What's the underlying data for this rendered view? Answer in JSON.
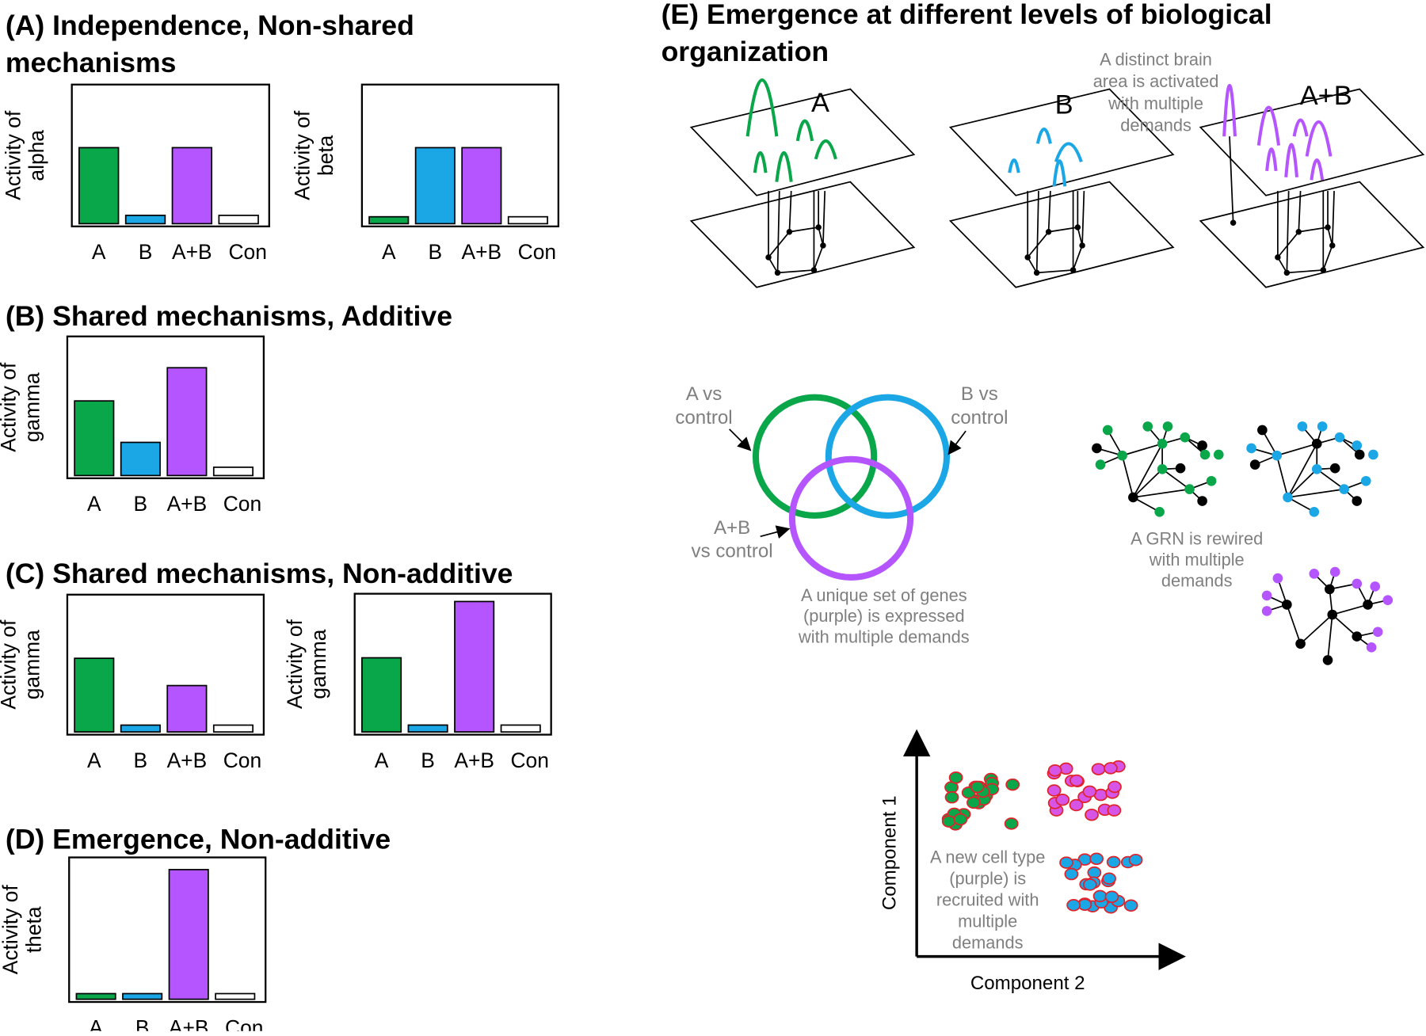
{
  "chart_data": [
    {
      "type": "bar",
      "title": [
        "(A) Independence, Non-shared",
        "mechanisms"
      ],
      "y_label": [
        "Activity of",
        "alpha"
      ],
      "categories": [
        "A",
        "B",
        "A+B",
        "Con"
      ],
      "values": [
        55,
        6,
        55,
        6
      ],
      "colors": [
        "#0aa64a",
        "#1ba7e6",
        "#b455ff",
        "#ffffff"
      ],
      "ylim": [
        0,
        100
      ]
    },
    {
      "type": "bar",
      "y_label": [
        "Activity of",
        "beta"
      ],
      "categories": [
        "A",
        "B",
        "A+B",
        "Con"
      ],
      "values": [
        5,
        55,
        55,
        5
      ],
      "colors": [
        "#0aa64a",
        "#1ba7e6",
        "#b455ff",
        "#ffffff"
      ],
      "ylim": [
        0,
        100
      ]
    },
    {
      "type": "bar",
      "title": [
        "(B) Shared mechanisms, Additive"
      ],
      "y_label": [
        "Activity of",
        "gamma"
      ],
      "categories": [
        "A",
        "B",
        "A+B",
        "Con"
      ],
      "values": [
        54,
        24,
        78,
        6
      ],
      "colors": [
        "#0aa64a",
        "#1ba7e6",
        "#b455ff",
        "#ffffff"
      ],
      "ylim": [
        0,
        100
      ]
    },
    {
      "type": "bar",
      "title": [
        "(C) Shared mechanisms, Non-additive"
      ],
      "y_label": [
        "Activity of",
        "gamma"
      ],
      "categories": [
        "A",
        "B",
        "A+B",
        "Con"
      ],
      "values": [
        54,
        5,
        34,
        5
      ],
      "colors": [
        "#0aa64a",
        "#1ba7e6",
        "#b455ff",
        "#ffffff"
      ],
      "ylim": [
        0,
        100
      ]
    },
    {
      "type": "bar",
      "y_label": [
        "Activity of",
        "gamma"
      ],
      "categories": [
        "A",
        "B",
        "A+B",
        "Con"
      ],
      "values": [
        54,
        5,
        95,
        5
      ],
      "colors": [
        "#0aa64a",
        "#1ba7e6",
        "#b455ff",
        "#ffffff"
      ],
      "ylim": [
        0,
        100
      ]
    },
    {
      "type": "bar",
      "title": [
        "(D) Emergence, Non-additive"
      ],
      "y_label": [
        "Activity of",
        "theta"
      ],
      "categories": [
        "A",
        "B",
        "A+B",
        "Con"
      ],
      "values": [
        4,
        4,
        92,
        4
      ],
      "colors": [
        "#0aa64a",
        "#1ba7e6",
        "#b455ff",
        "#ffffff"
      ],
      "ylim": [
        0,
        100
      ]
    }
  ],
  "panel_e": {
    "title": [
      "(E) Emergence at different levels of biological",
      "organization"
    ],
    "layer_labels": [
      "A",
      "B",
      "A+B"
    ],
    "brain_note": [
      "A distinct brain",
      "area is activated",
      "with multiple",
      "demands"
    ],
    "venn_a": [
      "A vs",
      "control"
    ],
    "venn_b": [
      "B vs",
      "control"
    ],
    "venn_ab": [
      "A+B",
      "vs control"
    ],
    "gene_note": [
      "A unique set of genes",
      "(purple) is expressed",
      "with multiple demands"
    ],
    "grn_note": [
      "A GRN is rewired",
      "with multiple",
      "demands"
    ],
    "cell_note": [
      "A new cell type",
      "(purple) is",
      "recruited with",
      "multiple",
      "demands"
    ],
    "x_axis": "Component 2",
    "y_axis": "Component 1"
  }
}
